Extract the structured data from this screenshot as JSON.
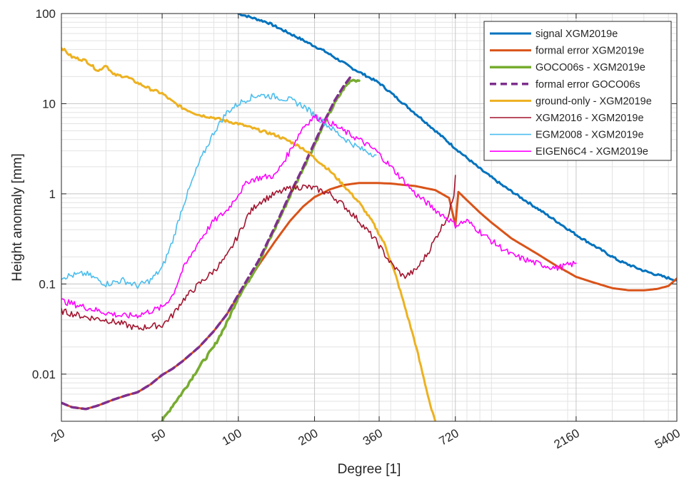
{
  "chart_data": {
    "type": "line",
    "title": "",
    "xlabel": "Degree [1]",
    "ylabel": "Height anomaly [mm]",
    "xscale": "log",
    "yscale": "log",
    "xlim": [
      20,
      5400
    ],
    "ylim": [
      0.003,
      100
    ],
    "grid": true,
    "legend_position": "top-right",
    "x_ticks": [
      {
        "value": 20,
        "label": "20"
      },
      {
        "value": 50,
        "label": "50"
      },
      {
        "value": 100,
        "label": "100"
      },
      {
        "value": 200,
        "label": "200"
      },
      {
        "value": 360,
        "label": "360"
      },
      {
        "value": 720,
        "label": "720"
      },
      {
        "value": 2160,
        "label": "2160"
      },
      {
        "value": 5400,
        "label": "5400"
      }
    ],
    "y_ticks": [
      {
        "value": 0.01,
        "label": "0.01"
      },
      {
        "value": 0.1,
        "label": "0.1"
      },
      {
        "value": 1,
        "label": "1"
      },
      {
        "value": 10,
        "label": "10"
      },
      {
        "value": 100,
        "label": "100"
      }
    ],
    "series": [
      {
        "name": "signal XGM2019e",
        "color": "#0072BD",
        "width": 3,
        "dash": "",
        "x": [
          100,
          130,
          170,
          220,
          280,
          360,
          450,
          540,
          720,
          900,
          1100,
          1400,
          1800,
          2200,
          2700,
          3200,
          4000,
          4800,
          5400
        ],
        "y": [
          100,
          80,
          55,
          38,
          25,
          17,
          10,
          6.5,
          3.2,
          1.9,
          1.25,
          0.8,
          0.5,
          0.34,
          0.24,
          0.18,
          0.14,
          0.12,
          0.11
        ]
      },
      {
        "name": "formal error XGM2019e",
        "color": "#D95319",
        "width": 3,
        "dash": "",
        "x": [
          20,
          22,
          25,
          28,
          32,
          36,
          40,
          45,
          50,
          55,
          60,
          70,
          80,
          90,
          100,
          110,
          120,
          140,
          160,
          180,
          200,
          230,
          260,
          300,
          350,
          400,
          500,
          600,
          680,
          720,
          740,
          800,
          900,
          1000,
          1200,
          1500,
          1800,
          2160,
          2500,
          3000,
          3500,
          4000,
          4500,
          5000,
          5400
        ],
        "y": [
          0.0048,
          0.0043,
          0.0041,
          0.0045,
          0.0052,
          0.0058,
          0.0063,
          0.0077,
          0.0098,
          0.0115,
          0.0138,
          0.02,
          0.03,
          0.046,
          0.074,
          0.11,
          0.16,
          0.3,
          0.5,
          0.72,
          0.92,
          1.12,
          1.25,
          1.32,
          1.32,
          1.3,
          1.22,
          1.1,
          0.9,
          0.45,
          1.05,
          0.85,
          0.62,
          0.48,
          0.32,
          0.22,
          0.16,
          0.12,
          0.105,
          0.09,
          0.085,
          0.085,
          0.088,
          0.095,
          0.115
        ]
      },
      {
        "name": "GOCO06s - XGM2019e",
        "color": "#77AC30",
        "width": 3.5,
        "dash": "",
        "x": [
          50,
          55,
          60,
          70,
          80,
          90,
          100,
          110,
          120,
          140,
          160,
          180,
          200,
          220,
          240,
          260,
          280,
          300
        ],
        "y": [
          0.003,
          0.0045,
          0.0062,
          0.012,
          0.02,
          0.037,
          0.072,
          0.11,
          0.17,
          0.42,
          0.95,
          1.9,
          3.5,
          6.3,
          10,
          14.5,
          18.5,
          18
        ]
      },
      {
        "name": "formal error GOCO06s",
        "color": "#7E2F8E",
        "width": 3.5,
        "dash": "9,6",
        "x": [
          20,
          22,
          25,
          28,
          32,
          36,
          40,
          45,
          50,
          55,
          60,
          70,
          80,
          90,
          100,
          110,
          120,
          140,
          160,
          180,
          200,
          220,
          240,
          260,
          280
        ],
        "y": [
          0.0048,
          0.0043,
          0.0041,
          0.0045,
          0.0052,
          0.0058,
          0.0063,
          0.0077,
          0.0098,
          0.0115,
          0.0138,
          0.02,
          0.03,
          0.046,
          0.076,
          0.12,
          0.18,
          0.44,
          1.0,
          1.95,
          3.7,
          6.6,
          10.8,
          15.5,
          20.5
        ]
      },
      {
        "name": "ground-only - XGM2019e",
        "color": "#EDB120",
        "width": 3,
        "dash": "",
        "x": [
          20,
          22,
          25,
          28,
          30,
          32,
          36,
          40,
          45,
          50,
          55,
          60,
          70,
          80,
          90,
          100,
          120,
          140,
          160,
          180,
          200,
          230,
          260,
          300,
          340,
          380,
          420,
          460,
          500,
          540,
          580,
          600
        ],
        "y": [
          42,
          33,
          30,
          23,
          27,
          21,
          20,
          17,
          14.5,
          13,
          10.5,
          9,
          7.5,
          7,
          6.4,
          6,
          5.1,
          4.5,
          3.8,
          3.2,
          2.5,
          1.8,
          1.25,
          0.8,
          0.48,
          0.27,
          0.12,
          0.05,
          0.022,
          0.009,
          0.004,
          0.003
        ]
      },
      {
        "name": "XGM2016 - XGM2019e",
        "color": "#A2142F",
        "width": 1.6,
        "dash": "",
        "x": [
          20,
          25,
          30,
          35,
          40,
          45,
          50,
          55,
          60,
          70,
          80,
          90,
          100,
          110,
          120,
          140,
          160,
          180,
          200,
          230,
          260,
          300,
          350,
          400,
          450,
          500,
          560,
          620,
          680,
          710,
          720
        ],
        "y": [
          0.05,
          0.043,
          0.04,
          0.036,
          0.032,
          0.034,
          0.035,
          0.045,
          0.065,
          0.1,
          0.14,
          0.2,
          0.35,
          0.6,
          0.8,
          1.0,
          1.15,
          1.2,
          1.15,
          1.0,
          0.75,
          0.5,
          0.3,
          0.17,
          0.12,
          0.14,
          0.22,
          0.38,
          0.6,
          1.0,
          1.6
        ]
      },
      {
        "name": "EGM2008 - XGM2019e",
        "color": "#4DBEEE",
        "width": 1.6,
        "dash": "",
        "x": [
          20,
          25,
          30,
          35,
          40,
          45,
          50,
          55,
          60,
          70,
          80,
          90,
          100,
          110,
          120,
          140,
          160,
          180,
          200,
          230,
          260,
          300,
          350
        ],
        "y": [
          0.12,
          0.13,
          0.1,
          0.11,
          0.095,
          0.11,
          0.15,
          0.3,
          0.7,
          2.2,
          4.8,
          8,
          10,
          11.5,
          12.5,
          12,
          11,
          9.5,
          7.5,
          5.5,
          4.2,
          3.2,
          2.7
        ]
      },
      {
        "name": "EIGEN6C4 - XGM2019e",
        "color": "#FF00FF",
        "width": 1.6,
        "dash": "",
        "x": [
          20,
          25,
          30,
          35,
          40,
          45,
          50,
          55,
          60,
          70,
          80,
          90,
          100,
          110,
          120,
          140,
          160,
          180,
          200,
          230,
          260,
          300,
          350,
          400,
          450,
          500,
          560,
          620,
          680,
          720,
          800,
          1000,
          1200,
          1500,
          1800,
          2160
        ],
        "y": [
          0.065,
          0.055,
          0.048,
          0.044,
          0.045,
          0.05,
          0.055,
          0.075,
          0.14,
          0.3,
          0.5,
          0.65,
          1.0,
          1.4,
          1.5,
          1.6,
          3,
          5.5,
          7.2,
          6.2,
          5,
          4,
          3,
          2,
          1.4,
          1.0,
          0.78,
          0.62,
          0.52,
          0.45,
          0.5,
          0.3,
          0.21,
          0.17,
          0.15,
          0.17
        ]
      }
    ]
  }
}
